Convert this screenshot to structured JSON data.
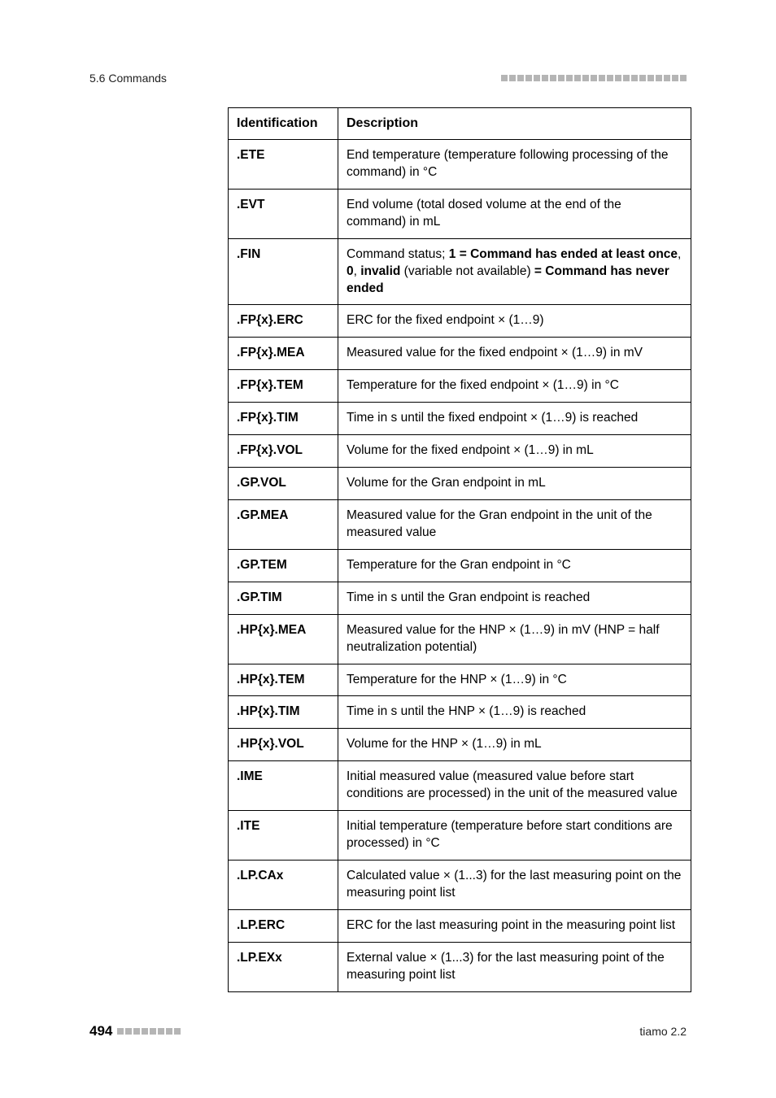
{
  "header": {
    "section": "5.6 Commands"
  },
  "table": {
    "columns": [
      "Identification",
      "Description"
    ],
    "rows": [
      {
        "id": ".ETE",
        "desc_html": "End temperature (temperature following processing of the command) in °C"
      },
      {
        "id": ".EVT",
        "desc_html": "End volume (total dosed volume at the end of the command) in mL"
      },
      {
        "id": ".FIN",
        "desc_html": "Command status; <b>1 = Command has ended at least once</b>, <b>0</b>, <b>invalid</b> (variable not available) <b>= Command has never ended</b>"
      },
      {
        "id": ".FP{x}.ERC",
        "desc_html": "ERC for the fixed endpoint × (1…9)"
      },
      {
        "id": ".FP{x}.MEA",
        "desc_html": "Measured value for the fixed endpoint × (1…9) in mV"
      },
      {
        "id": ".FP{x}.TEM",
        "desc_html": "Temperature for the fixed endpoint × (1…9) in °C"
      },
      {
        "id": ".FP{x}.TIM",
        "desc_html": "Time in s until the fixed endpoint × (1…9) is reached"
      },
      {
        "id": ".FP{x}.VOL",
        "desc_html": "Volume for the fixed endpoint × (1…9) in mL"
      },
      {
        "id": ".GP.VOL",
        "desc_html": "Volume for the Gran endpoint in mL"
      },
      {
        "id": ".GP.MEA",
        "desc_html": "Measured value for the Gran endpoint in the unit of the measured value"
      },
      {
        "id": ".GP.TEM",
        "desc_html": "Temperature for the Gran endpoint in °C"
      },
      {
        "id": ".GP.TIM",
        "desc_html": "Time in s until the Gran endpoint is reached"
      },
      {
        "id": ".HP{x}.MEA",
        "desc_html": "Measured value for the HNP × (1…9) in mV (HNP = half neutralization potential)"
      },
      {
        "id": ".HP{x}.TEM",
        "desc_html": "Temperature for the HNP × (1…9) in °C"
      },
      {
        "id": ".HP{x}.TIM",
        "desc_html": "Time in s until the HNP × (1…9) is reached"
      },
      {
        "id": ".HP{x}.VOL",
        "desc_html": "Volume for the HNP × (1…9) in mL"
      },
      {
        "id": ".IME",
        "desc_html": "Initial measured value (measured value before start conditions are processed) in the unit of the measured value"
      },
      {
        "id": ".ITE",
        "desc_html": "Initial temperature (temperature before start conditions are processed) in °C"
      },
      {
        "id": ".LP.CAx",
        "desc_html": "Calculated value × (1...3) for the last measuring point on the measuring point list"
      },
      {
        "id": ".LP.ERC",
        "desc_html": "ERC for the last measuring point in the measuring point list"
      },
      {
        "id": ".LP.EXx",
        "desc_html": "External value × (1...3) for the last measuring point of the measuring point list"
      }
    ]
  },
  "footer": {
    "page_number": "494",
    "product": "tiamo 2.2"
  },
  "style": {
    "dash_color": "#b5b5b5",
    "dash_count_header": 23,
    "dash_count_footer": 8
  }
}
